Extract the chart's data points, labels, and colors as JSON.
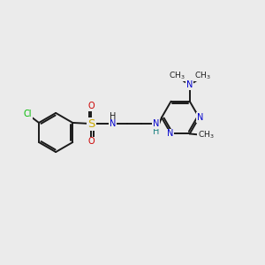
{
  "background_color": "#ebebeb",
  "bond_color": "#1a1a1a",
  "atom_colors": {
    "N": "#0000cc",
    "O": "#cc0000",
    "S": "#ccaa00",
    "Cl": "#00bb00",
    "C": "#1a1a1a",
    "H_N": "#1a8080"
  },
  "font_size": 7.0,
  "line_width": 1.4,
  "figsize": [
    3.0,
    3.0
  ],
  "dpi": 100
}
